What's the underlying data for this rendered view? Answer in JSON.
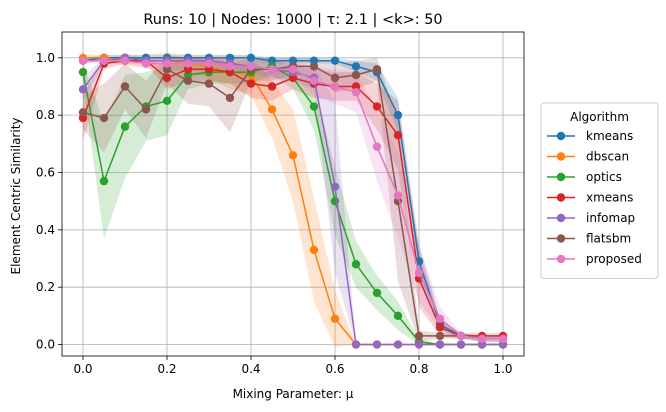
{
  "chart_data": {
    "type": "line",
    "title": "Runs: 10 | Nodes: 1000 | τ: 2.1 | <k>: 50",
    "xlabel": "Mixing Parameter: μ",
    "ylabel": "Element Centric Similarity",
    "xlim": [
      -0.05,
      1.05
    ],
    "ylim": [
      -0.04,
      1.09
    ],
    "xticks": [
      "0.0",
      "0.2",
      "0.4",
      "0.6",
      "0.8",
      "1.0"
    ],
    "yticks": [
      "0.0",
      "0.2",
      "0.4",
      "0.6",
      "0.8",
      "1.0"
    ],
    "grid": true,
    "legend": {
      "title": "Algorithm",
      "placement": "outside-right"
    },
    "x": [
      0.0,
      0.05,
      0.1,
      0.15,
      0.2,
      0.25,
      0.3,
      0.35,
      0.4,
      0.45,
      0.5,
      0.55,
      0.6,
      0.65,
      0.7,
      0.75,
      0.8,
      0.85,
      0.9,
      0.95,
      1.0
    ],
    "series": [
      {
        "name": "kmeans",
        "color": "#1f77b4",
        "values": [
          0.99,
          1.0,
          1.0,
          1.0,
          1.0,
          1.0,
          1.0,
          1.0,
          1.0,
          0.99,
          0.99,
          0.99,
          0.99,
          0.97,
          0.95,
          0.8,
          0.29,
          0.07,
          0.03,
          0.02,
          0.02
        ],
        "spread": [
          0.01,
          0.01,
          0.01,
          0.01,
          0.01,
          0.01,
          0.01,
          0.01,
          0.01,
          0.01,
          0.01,
          0.01,
          0.01,
          0.02,
          0.03,
          0.06,
          0.06,
          0.02,
          0.01,
          0.01,
          0.01
        ]
      },
      {
        "name": "dbscan",
        "color": "#ff7f0e",
        "values": [
          1.0,
          1.0,
          0.99,
          0.99,
          0.99,
          0.98,
          0.97,
          0.95,
          0.94,
          0.82,
          0.66,
          0.33,
          0.09,
          0.0,
          0.0,
          0.0,
          0.0,
          0.0,
          0.0,
          0.0,
          0.0
        ],
        "spread": [
          0.01,
          0.01,
          0.02,
          0.02,
          0.03,
          0.03,
          0.04,
          0.06,
          0.07,
          0.1,
          0.16,
          0.18,
          0.1,
          0.0,
          0.0,
          0.0,
          0.0,
          0.0,
          0.0,
          0.0,
          0.0
        ]
      },
      {
        "name": "optics",
        "color": "#2ca02c",
        "values": [
          0.95,
          0.57,
          0.76,
          0.83,
          0.85,
          0.94,
          0.95,
          0.95,
          0.95,
          0.97,
          0.93,
          0.83,
          0.5,
          0.28,
          0.18,
          0.1,
          0.01,
          0.0,
          0.0,
          0.0,
          0.0
        ],
        "spread": [
          0.04,
          0.2,
          0.18,
          0.12,
          0.12,
          0.05,
          0.04,
          0.04,
          0.04,
          0.03,
          0.04,
          0.08,
          0.12,
          0.08,
          0.06,
          0.05,
          0.01,
          0.0,
          0.0,
          0.0,
          0.0
        ]
      },
      {
        "name": "xmeans",
        "color": "#d62728",
        "values": [
          0.79,
          0.98,
          0.99,
          0.99,
          0.93,
          0.96,
          0.96,
          0.95,
          0.91,
          0.9,
          0.93,
          0.91,
          0.9,
          0.9,
          0.83,
          0.73,
          0.23,
          0.06,
          0.03,
          0.03,
          0.03
        ],
        "spread": [
          0.08,
          0.02,
          0.01,
          0.01,
          0.04,
          0.04,
          0.04,
          0.04,
          0.05,
          0.05,
          0.04,
          0.05,
          0.05,
          0.05,
          0.08,
          0.12,
          0.1,
          0.03,
          0.01,
          0.01,
          0.01
        ]
      },
      {
        "name": "infomap",
        "color": "#9467bd",
        "values": [
          0.89,
          0.99,
          1.0,
          0.99,
          0.99,
          0.99,
          0.99,
          0.98,
          0.97,
          0.96,
          0.95,
          0.93,
          0.55,
          0.0,
          0.0,
          0.0,
          0.0,
          0.0,
          0.0,
          0.0,
          0.0
        ],
        "spread": [
          0.04,
          0.01,
          0.01,
          0.01,
          0.01,
          0.01,
          0.01,
          0.02,
          0.02,
          0.03,
          0.03,
          0.04,
          0.3,
          0.0,
          0.0,
          0.0,
          0.0,
          0.0,
          0.0,
          0.0,
          0.0
        ]
      },
      {
        "name": "flatsbm",
        "color": "#8c564b",
        "values": [
          0.81,
          0.79,
          0.9,
          0.82,
          0.96,
          0.92,
          0.91,
          0.86,
          0.96,
          0.96,
          0.97,
          0.97,
          0.93,
          0.94,
          0.96,
          0.5,
          0.03,
          0.03,
          0.03,
          0.02,
          0.02
        ],
        "spread": [
          0.06,
          0.12,
          0.08,
          0.1,
          0.05,
          0.08,
          0.08,
          0.12,
          0.04,
          0.04,
          0.03,
          0.03,
          0.05,
          0.05,
          0.04,
          0.28,
          0.02,
          0.01,
          0.01,
          0.01,
          0.01
        ]
      },
      {
        "name": "proposed",
        "color": "#e377c2",
        "values": [
          0.99,
          0.99,
          0.99,
          0.98,
          0.98,
          0.98,
          0.98,
          0.97,
          0.97,
          0.96,
          0.96,
          0.92,
          0.9,
          0.88,
          0.69,
          0.52,
          0.25,
          0.09,
          0.03,
          0.02,
          0.02
        ],
        "spread": [
          0.01,
          0.01,
          0.01,
          0.02,
          0.02,
          0.02,
          0.02,
          0.03,
          0.03,
          0.03,
          0.03,
          0.05,
          0.06,
          0.07,
          0.12,
          0.15,
          0.1,
          0.04,
          0.01,
          0.01,
          0.01
        ]
      }
    ]
  }
}
